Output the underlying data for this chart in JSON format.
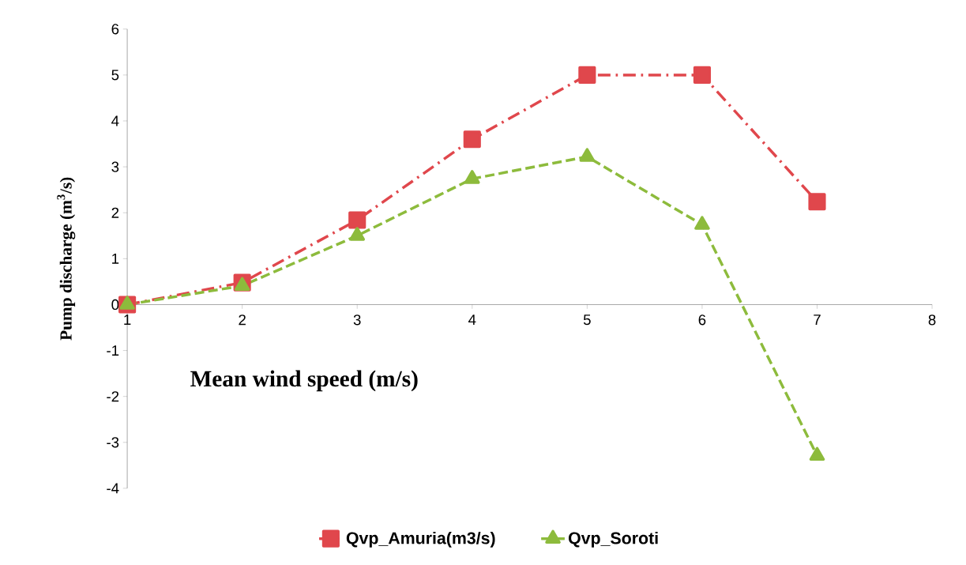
{
  "chart_data": {
    "type": "line",
    "xlabel": "Mean wind speed (m/s)",
    "ylabel": "Pump discharge (m$^{3}$/s)",
    "x": [
      1,
      2,
      3,
      4,
      5,
      6,
      7
    ],
    "series": [
      {
        "name": "Qvp_Amuria(m3/s)",
        "color": "#e0474c",
        "values": [
          0,
          0.48,
          1.84,
          3.6,
          5.0,
          5.0,
          2.24
        ],
        "marker": "square",
        "line_style": "dashdot"
      },
      {
        "name": "Qvp_Soroti",
        "color": "#8dbb3c",
        "values": [
          0,
          0.41,
          1.5,
          2.74,
          3.22,
          1.74,
          -3.29
        ],
        "marker": "triangle",
        "line_style": "dashed"
      }
    ],
    "xlim": [
      1,
      8
    ],
    "xticks": [
      1,
      2,
      3,
      4,
      5,
      6,
      7,
      8
    ],
    "ylim": [
      -4,
      6
    ],
    "yticks": [
      -4,
      -3,
      -2,
      -1,
      0,
      1,
      2,
      3,
      4,
      5,
      6
    ],
    "grid": false,
    "legend": "bottom"
  }
}
